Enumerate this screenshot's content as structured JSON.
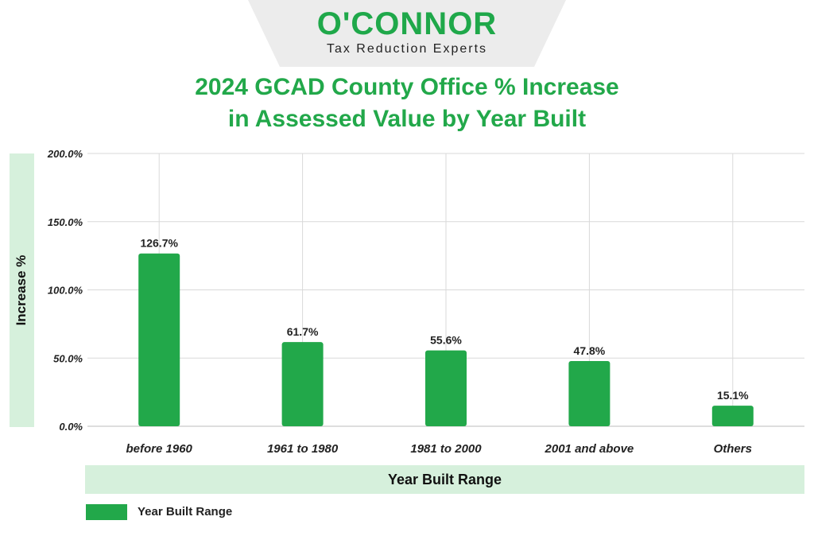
{
  "logo": {
    "name": "O'CONNOR",
    "tagline": "Tax Reduction Experts"
  },
  "colors": {
    "bar": "#22a84a",
    "title": "#22a84a",
    "band": "#d6f0dc",
    "grid": "#d9d9d9"
  },
  "chart_data": {
    "type": "bar",
    "title_lines": [
      "2024 GCAD County Office % Increase",
      "in Assessed Value by Year Built"
    ],
    "categories": [
      "before 1960",
      "1961 to 1980",
      "1981 to 2000",
      "2001 and above",
      "Others"
    ],
    "series": [
      {
        "name": "Year Built Range",
        "values": [
          126.7,
          61.7,
          55.6,
          47.8,
          15.1
        ]
      }
    ],
    "value_labels": [
      "126.7%",
      "61.7%",
      "55.6%",
      "47.8%",
      "15.1%"
    ],
    "y_ticks": [
      "0.0%",
      "50.0%",
      "100.0%",
      "150.0%",
      "200.0%"
    ],
    "ylim": [
      0,
      200
    ],
    "xlabel": "Year Built Range",
    "ylabel": "Increase %",
    "grid": true,
    "legend": {
      "placement": "bottom-left",
      "label": "Year Built Range"
    }
  }
}
